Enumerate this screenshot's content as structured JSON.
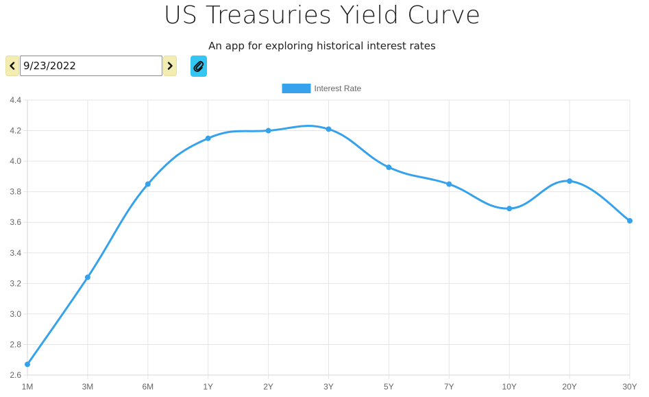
{
  "header": {
    "title": "US Treasuries Yield Curve",
    "subtitle": "An app for exploring historical interest rates"
  },
  "controls": {
    "date_value": "9/23/2022",
    "prev_icon": "chevron-left-icon",
    "next_icon": "chevron-right-icon",
    "attach_icon": "paperclip-icon"
  },
  "colors": {
    "series": "#36a2eb",
    "nav_button_bg": "#f3edb2",
    "attach_button_bg": "#33c6f2",
    "grid": "#e5e5e5"
  },
  "chart_data": {
    "type": "line",
    "title": "",
    "xlabel": "",
    "ylabel": "",
    "categories": [
      "1M",
      "3M",
      "6M",
      "1Y",
      "2Y",
      "3Y",
      "5Y",
      "7Y",
      "10Y",
      "20Y",
      "30Y"
    ],
    "series": [
      {
        "name": "Interest Rate",
        "values": [
          2.67,
          3.24,
          3.85,
          4.15,
          4.2,
          4.21,
          3.96,
          3.85,
          3.69,
          3.87,
          3.61
        ]
      }
    ],
    "yticks": [
      "2.6",
      "2.8",
      "3.0",
      "3.2",
      "3.4",
      "3.6",
      "3.8",
      "4.0",
      "4.2",
      "4.4"
    ],
    "ylim": [
      2.6,
      4.4
    ],
    "grid": true,
    "legend_position": "top-center",
    "curve": "smooth"
  }
}
